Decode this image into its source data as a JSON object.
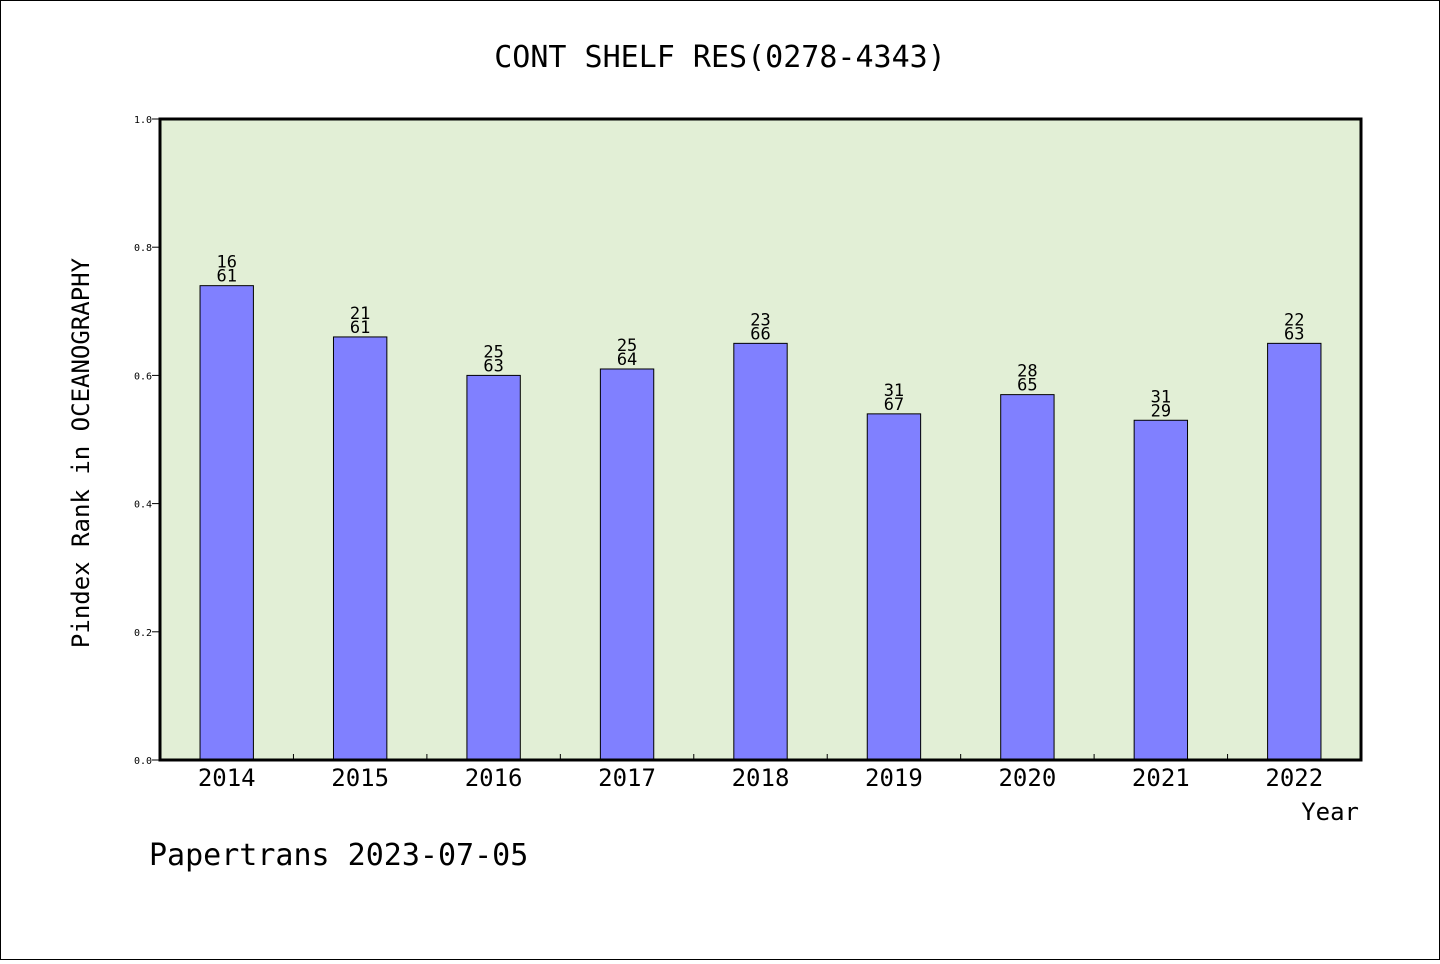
{
  "chart_data": {
    "type": "bar",
    "title": "CONT SHELF RES(0278-4343)",
    "xlabel": "Year",
    "ylabel": "Pindex Rank in OCEANOGRAPHY",
    "ylim": [
      0,
      1.0
    ],
    "yticks": [
      "0.0",
      "0.2",
      "0.4",
      "0.6",
      "0.8",
      "1.0"
    ],
    "categories": [
      "2014",
      "2015",
      "2016",
      "2017",
      "2018",
      "2019",
      "2020",
      "2021",
      "2022"
    ],
    "values": [
      0.74,
      0.66,
      0.6,
      0.61,
      0.65,
      0.54,
      0.57,
      0.53,
      0.65
    ],
    "bar_labels_top": [
      "16",
      "21",
      "25",
      "25",
      "23",
      "31",
      "28",
      "31",
      "22"
    ],
    "bar_labels_bottom": [
      "61",
      "61",
      "63",
      "64",
      "66",
      "67",
      "65",
      "29",
      "63"
    ],
    "grid": false,
    "colors": {
      "bar": "#8080ff",
      "plot_background": "#e2efd6",
      "bar_edge": "#000000"
    }
  },
  "footer": {
    "text": "Papertrans 2023-07-05"
  }
}
